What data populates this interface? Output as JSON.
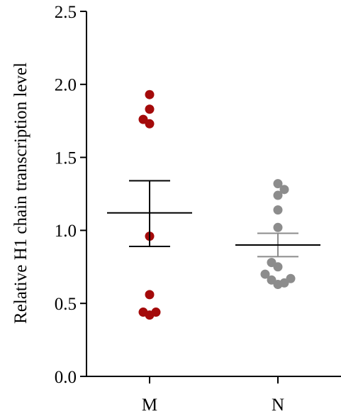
{
  "chart_data": {
    "type": "scatter",
    "ylabel": "Relative H1 chain transcription level",
    "xlabel": "",
    "categories": [
      "M",
      "N"
    ],
    "ylim": [
      0,
      2.5
    ],
    "yticks": [
      "0.0",
      "0.5",
      "1.0",
      "1.5",
      "2.0",
      "2.5"
    ],
    "grid": false,
    "legend": "none",
    "series": [
      {
        "category": "M",
        "color": "#a40a0a",
        "error_color": "#000000",
        "points": [
          {
            "x": 0.0,
            "y": 1.93
          },
          {
            "x": -0.09,
            "y": 1.76
          },
          {
            "x": 0.0,
            "y": 1.83
          },
          {
            "x": 0.0,
            "y": 1.73
          },
          {
            "x": 0.0,
            "y": 0.96
          },
          {
            "x": 0.0,
            "y": 0.56
          },
          {
            "x": -0.09,
            "y": 0.44
          },
          {
            "x": 0.0,
            "y": 0.42
          },
          {
            "x": 0.09,
            "y": 0.44
          }
        ],
        "mean": 1.12,
        "sem_upper": 1.34,
        "sem_lower": 0.89
      },
      {
        "category": "N",
        "color": "#8c8c8c",
        "error_color": "#8c8c8c",
        "points": [
          {
            "x": 0.0,
            "y": 1.32
          },
          {
            "x": 0.09,
            "y": 1.28
          },
          {
            "x": 0.0,
            "y": 1.24
          },
          {
            "x": 0.0,
            "y": 1.14
          },
          {
            "x": 0.0,
            "y": 1.02
          },
          {
            "x": -0.09,
            "y": 0.78
          },
          {
            "x": 0.0,
            "y": 0.75
          },
          {
            "x": -0.18,
            "y": 0.7
          },
          {
            "x": -0.09,
            "y": 0.66
          },
          {
            "x": 0.0,
            "y": 0.63
          },
          {
            "x": 0.09,
            "y": 0.64
          },
          {
            "x": 0.18,
            "y": 0.67
          }
        ],
        "mean": 0.9,
        "sem_upper": 0.98,
        "sem_lower": 0.82
      }
    ]
  }
}
